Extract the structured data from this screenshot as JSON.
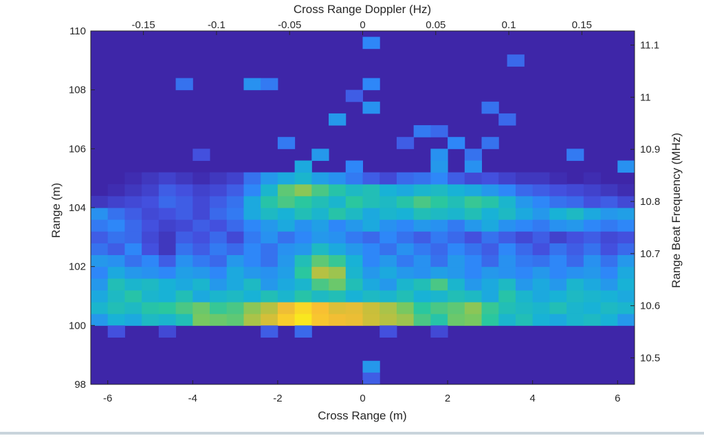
{
  "chart_data": {
    "type": "heatmap",
    "title": "Cross Range Doppler (Hz)",
    "xlabel": "Cross Range (m)",
    "ylabel": "Range (m)",
    "y2label": "Range Beat Frequency (MHz)",
    "xlim": [
      -6.4,
      6.4
    ],
    "ylim": [
      98,
      110
    ],
    "x_ticks": [
      "-6",
      "-4",
      "-2",
      "0",
      "2",
      "4",
      "6"
    ],
    "y_ticks": [
      "98",
      "100",
      "102",
      "104",
      "106",
      "108",
      "110"
    ],
    "top_ticks": [
      "-0.15",
      "-0.1",
      "-0.05",
      "0",
      "0.05",
      "0.1",
      "0.15"
    ],
    "right_ticks": [
      "10.5",
      "10.6",
      "10.7",
      "10.8",
      "10.9",
      "11",
      "11.1"
    ],
    "colormap": [
      "#3e26a8",
      "#4352e0",
      "#2e87f8",
      "#17b1d8",
      "#2ac79f",
      "#7bc85e",
      "#c9bf3b",
      "#f8be33",
      "#f9e71f"
    ],
    "background_value": 0,
    "color_range": [
      0,
      1
    ],
    "grid": false,
    "cells_x": [
      -6.2,
      -5.8,
      -5.4,
      -5.0,
      -4.6,
      -4.2,
      -3.8,
      -3.4,
      -3.0,
      -2.6,
      -2.2,
      -1.8,
      -1.4,
      -1.0,
      -0.6,
      -0.2,
      0.2,
      0.6,
      1.0,
      1.4,
      1.8,
      2.2,
      2.6,
      3.0,
      3.4,
      3.8,
      4.2,
      4.6,
      5.0,
      5.4,
      5.8,
      6.2
    ],
    "cells_y": [
      100.2,
      100.6,
      101.0,
      101.4,
      101.8,
      102.2,
      102.6,
      103.0,
      103.4,
      103.8,
      104.2,
      104.6,
      105.0
    ],
    "cells_values": [
      [
        0.3,
        0.38,
        0.35,
        0.42,
        0.4,
        0.45,
        0.62,
        0.6,
        0.58,
        0.7,
        0.78,
        0.92,
        1.0,
        0.9,
        0.86,
        0.84,
        0.76,
        0.72,
        0.68,
        0.55,
        0.48,
        0.6,
        0.62,
        0.5,
        0.4,
        0.45,
        0.38,
        0.35,
        0.4,
        0.42,
        0.38,
        0.3
      ],
      [
        0.4,
        0.45,
        0.42,
        0.48,
        0.5,
        0.55,
        0.6,
        0.52,
        0.55,
        0.65,
        0.72,
        0.85,
        0.95,
        0.88,
        0.8,
        0.82,
        0.75,
        0.7,
        0.62,
        0.5,
        0.55,
        0.58,
        0.65,
        0.52,
        0.45,
        0.42,
        0.4,
        0.45,
        0.4,
        0.38,
        0.42,
        0.4
      ],
      [
        0.35,
        0.42,
        0.48,
        0.4,
        0.38,
        0.45,
        0.35,
        0.4,
        0.42,
        0.38,
        0.45,
        0.4,
        0.48,
        0.42,
        0.45,
        0.38,
        0.42,
        0.4,
        0.45,
        0.38,
        0.4,
        0.45,
        0.42,
        0.35,
        0.48,
        0.4,
        0.35,
        0.38,
        0.42,
        0.4,
        0.38,
        0.35
      ],
      [
        0.3,
        0.45,
        0.4,
        0.42,
        0.38,
        0.35,
        0.4,
        0.3,
        0.35,
        0.42,
        0.3,
        0.35,
        0.4,
        0.55,
        0.6,
        0.45,
        0.35,
        0.3,
        0.4,
        0.45,
        0.55,
        0.4,
        0.3,
        0.35,
        0.42,
        0.3,
        0.35,
        0.3,
        0.4,
        0.35,
        0.3,
        0.38
      ],
      [
        0.25,
        0.35,
        0.3,
        0.28,
        0.25,
        0.32,
        0.3,
        0.25,
        0.35,
        0.3,
        0.28,
        0.32,
        0.5,
        0.72,
        0.68,
        0.4,
        0.3,
        0.35,
        0.3,
        0.28,
        0.32,
        0.3,
        0.25,
        0.3,
        0.28,
        0.25,
        0.3,
        0.25,
        0.28,
        0.3,
        0.25,
        0.35
      ],
      [
        0.3,
        0.28,
        0.2,
        0.25,
        0.15,
        0.28,
        0.22,
        0.18,
        0.3,
        0.25,
        0.2,
        0.3,
        0.45,
        0.58,
        0.52,
        0.38,
        0.25,
        0.3,
        0.22,
        0.28,
        0.2,
        0.3,
        0.25,
        0.18,
        0.28,
        0.22,
        0.2,
        0.25,
        0.18,
        0.28,
        0.2,
        0.3
      ],
      [
        0.2,
        0.15,
        0.25,
        0.12,
        0.05,
        0.2,
        0.15,
        0.22,
        0.18,
        0.25,
        0.2,
        0.28,
        0.3,
        0.42,
        0.35,
        0.3,
        0.25,
        0.2,
        0.28,
        0.22,
        0.18,
        0.25,
        0.2,
        0.15,
        0.25,
        0.18,
        0.12,
        0.2,
        0.15,
        0.2,
        0.12,
        0.18
      ],
      [
        0.15,
        0.2,
        0.18,
        0.1,
        0.05,
        0.15,
        0.12,
        0.18,
        0.1,
        0.22,
        0.28,
        0.2,
        0.25,
        0.3,
        0.28,
        0.22,
        0.18,
        0.25,
        0.2,
        0.15,
        0.22,
        0.18,
        0.12,
        0.2,
        0.15,
        0.1,
        0.15,
        0.08,
        0.12,
        0.15,
        0.1,
        0.12
      ],
      [
        0.22,
        0.25,
        0.18,
        0.12,
        0.08,
        0.1,
        0.15,
        0.12,
        0.18,
        0.25,
        0.3,
        0.35,
        0.28,
        0.32,
        0.25,
        0.3,
        0.35,
        0.28,
        0.25,
        0.3,
        0.28,
        0.22,
        0.3,
        0.35,
        0.28,
        0.25,
        0.22,
        0.28,
        0.3,
        0.25,
        0.22,
        0.25
      ],
      [
        0.28,
        0.2,
        0.15,
        0.1,
        0.12,
        0.15,
        0.1,
        0.18,
        0.22,
        0.35,
        0.42,
        0.38,
        0.45,
        0.4,
        0.48,
        0.42,
        0.35,
        0.4,
        0.38,
        0.45,
        0.42,
        0.4,
        0.45,
        0.38,
        0.42,
        0.35,
        0.3,
        0.38,
        0.42,
        0.35,
        0.3,
        0.32
      ],
      [
        0.05,
        0.08,
        0.1,
        0.12,
        0.18,
        0.15,
        0.1,
        0.15,
        0.2,
        0.35,
        0.48,
        0.55,
        0.5,
        0.45,
        0.4,
        0.5,
        0.45,
        0.42,
        0.48,
        0.55,
        0.5,
        0.45,
        0.52,
        0.48,
        0.4,
        0.3,
        0.25,
        0.2,
        0.18,
        0.12,
        0.15,
        0.1
      ],
      [
        0.0,
        0.02,
        0.05,
        0.08,
        0.15,
        0.12,
        0.08,
        0.1,
        0.15,
        0.25,
        0.4,
        0.58,
        0.65,
        0.55,
        0.48,
        0.42,
        0.45,
        0.38,
        0.35,
        0.4,
        0.42,
        0.38,
        0.35,
        0.3,
        0.25,
        0.18,
        0.15,
        0.12,
        0.1,
        0.08,
        0.05,
        0.02
      ],
      [
        0.0,
        0.0,
        0.02,
        0.05,
        0.08,
        0.05,
        0.02,
        0.05,
        0.08,
        0.2,
        0.3,
        0.35,
        0.4,
        0.32,
        0.28,
        0.22,
        0.15,
        0.1,
        0.18,
        0.2,
        0.25,
        0.15,
        0.1,
        0.12,
        0.08,
        0.05,
        0.05,
        0.02,
        0.0,
        0.02,
        0.0,
        0.0
      ]
    ],
    "scatter_cells": [
      [
        0.2,
        109.6,
        0.25
      ],
      [
        3.6,
        109.0,
        0.18
      ],
      [
        -4.2,
        108.2,
        0.2
      ],
      [
        -2.6,
        108.2,
        0.28
      ],
      [
        -2.2,
        108.2,
        0.22
      ],
      [
        0.2,
        108.2,
        0.25
      ],
      [
        -0.2,
        107.8,
        0.15
      ],
      [
        0.2,
        107.4,
        0.28
      ],
      [
        -0.6,
        107.0,
        0.3
      ],
      [
        3.0,
        107.4,
        0.2
      ],
      [
        3.4,
        107.0,
        0.18
      ],
      [
        1.4,
        106.6,
        0.22
      ],
      [
        1.8,
        106.6,
        0.18
      ],
      [
        2.2,
        106.2,
        0.25
      ],
      [
        3.0,
        106.2,
        0.2
      ],
      [
        1.0,
        106.2,
        0.15
      ],
      [
        -1.8,
        106.2,
        0.22
      ],
      [
        -1.0,
        105.8,
        0.3
      ],
      [
        1.8,
        105.8,
        0.28
      ],
      [
        -3.8,
        105.8,
        0.12
      ],
      [
        2.6,
        105.8,
        0.2
      ],
      [
        5.0,
        105.8,
        0.22
      ],
      [
        6.2,
        105.4,
        0.28
      ],
      [
        -1.4,
        105.4,
        0.35
      ],
      [
        -0.2,
        105.4,
        0.25
      ],
      [
        1.8,
        105.4,
        0.3
      ],
      [
        2.6,
        105.4,
        0.28
      ],
      [
        0.2,
        98.6,
        0.3
      ],
      [
        0.2,
        98.2,
        0.15
      ],
      [
        -5.8,
        99.8,
        0.12
      ],
      [
        -4.6,
        99.8,
        0.1
      ],
      [
        -2.2,
        99.8,
        0.15
      ],
      [
        -1.4,
        99.8,
        0.18
      ],
      [
        0.6,
        99.8,
        0.12
      ],
      [
        1.8,
        99.8,
        0.1
      ]
    ]
  }
}
